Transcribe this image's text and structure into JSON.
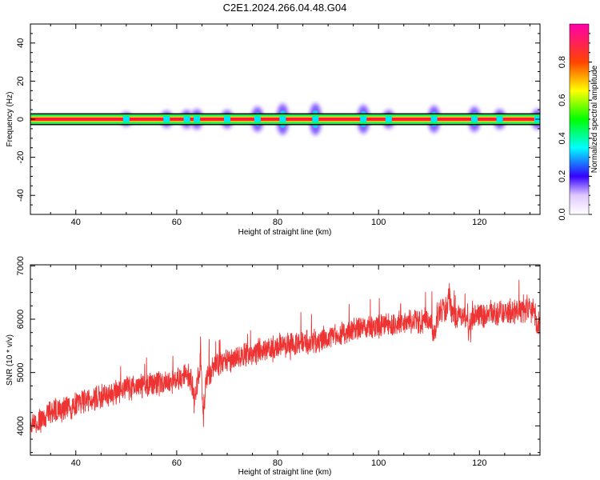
{
  "title": "C2E1.2024.266.04.48.G04",
  "chart_data": [
    {
      "type": "heatmap",
      "xlabel": "Height of straight line (km)",
      "ylabel": "Frequency (Hz)",
      "xlim": [
        31,
        132
      ],
      "ylim": [
        -50,
        50
      ],
      "xticks": [
        40,
        60,
        80,
        100,
        120
      ],
      "yticks": [
        -40,
        -20,
        0,
        20,
        40
      ],
      "colorbar": {
        "label": "Normalized spectral amplitude",
        "range": [
          0.0,
          1.0
        ],
        "ticks": [
          "0.0",
          "0.2",
          "0.4",
          "0.6",
          "0.8"
        ]
      },
      "band_center": 0,
      "band_halfwidth": 2.5,
      "blobs": [
        {
          "x": 50,
          "spread": 1.5
        },
        {
          "x": 58,
          "spread": 1.8
        },
        {
          "x": 62,
          "spread": 2.0
        },
        {
          "x": 64,
          "spread": 2.2
        },
        {
          "x": 70,
          "spread": 2.0
        },
        {
          "x": 76,
          "spread": 2.8
        },
        {
          "x": 81,
          "spread": 3.5
        },
        {
          "x": 87.5,
          "spread": 3.6
        },
        {
          "x": 97,
          "spread": 3.2
        },
        {
          "x": 102,
          "spread": 2.0
        },
        {
          "x": 111,
          "spread": 3.0
        },
        {
          "x": 119,
          "spread": 2.8
        },
        {
          "x": 124,
          "spread": 2.2
        },
        {
          "x": 131.5,
          "spread": 2.2
        }
      ]
    },
    {
      "type": "line",
      "xlabel": "Height of straight line (km)",
      "ylabel": "SNR (10 * v/v)",
      "xlim": [
        31,
        132
      ],
      "ylim": [
        3450,
        7020
      ],
      "xticks": [
        40,
        60,
        80,
        100,
        120
      ],
      "yticks": [
        4000,
        5000,
        6000,
        7000
      ],
      "color": "#ee3333",
      "trend": [
        [
          31,
          3950
        ],
        [
          35,
          4250
        ],
        [
          40,
          4400
        ],
        [
          45,
          4550
        ],
        [
          50,
          4700
        ],
        [
          55,
          4780
        ],
        [
          60,
          4850
        ],
        [
          62,
          4950
        ],
        [
          65,
          4850
        ],
        [
          68,
          5150
        ],
        [
          72,
          5300
        ],
        [
          76,
          5400
        ],
        [
          80,
          5500
        ],
        [
          85,
          5560
        ],
        [
          90,
          5650
        ],
        [
          95,
          5800
        ],
        [
          100,
          5870
        ],
        [
          105,
          5920
        ],
        [
          110,
          6000
        ],
        [
          113,
          6200
        ],
        [
          115,
          6050
        ],
        [
          120,
          6080
        ],
        [
          125,
          6120
        ],
        [
          130,
          6150
        ],
        [
          132,
          6200
        ]
      ],
      "dips": [
        {
          "x": 63.5,
          "depth": 500
        },
        {
          "x": 65.2,
          "depth": 900
        },
        {
          "x": 111,
          "depth": 500
        },
        {
          "x": 118,
          "depth": 350
        },
        {
          "x": 131.5,
          "depth": 600
        }
      ],
      "spikes": [
        {
          "x": 64.8,
          "height": 900
        },
        {
          "x": 114,
          "height": 600
        }
      ]
    }
  ]
}
